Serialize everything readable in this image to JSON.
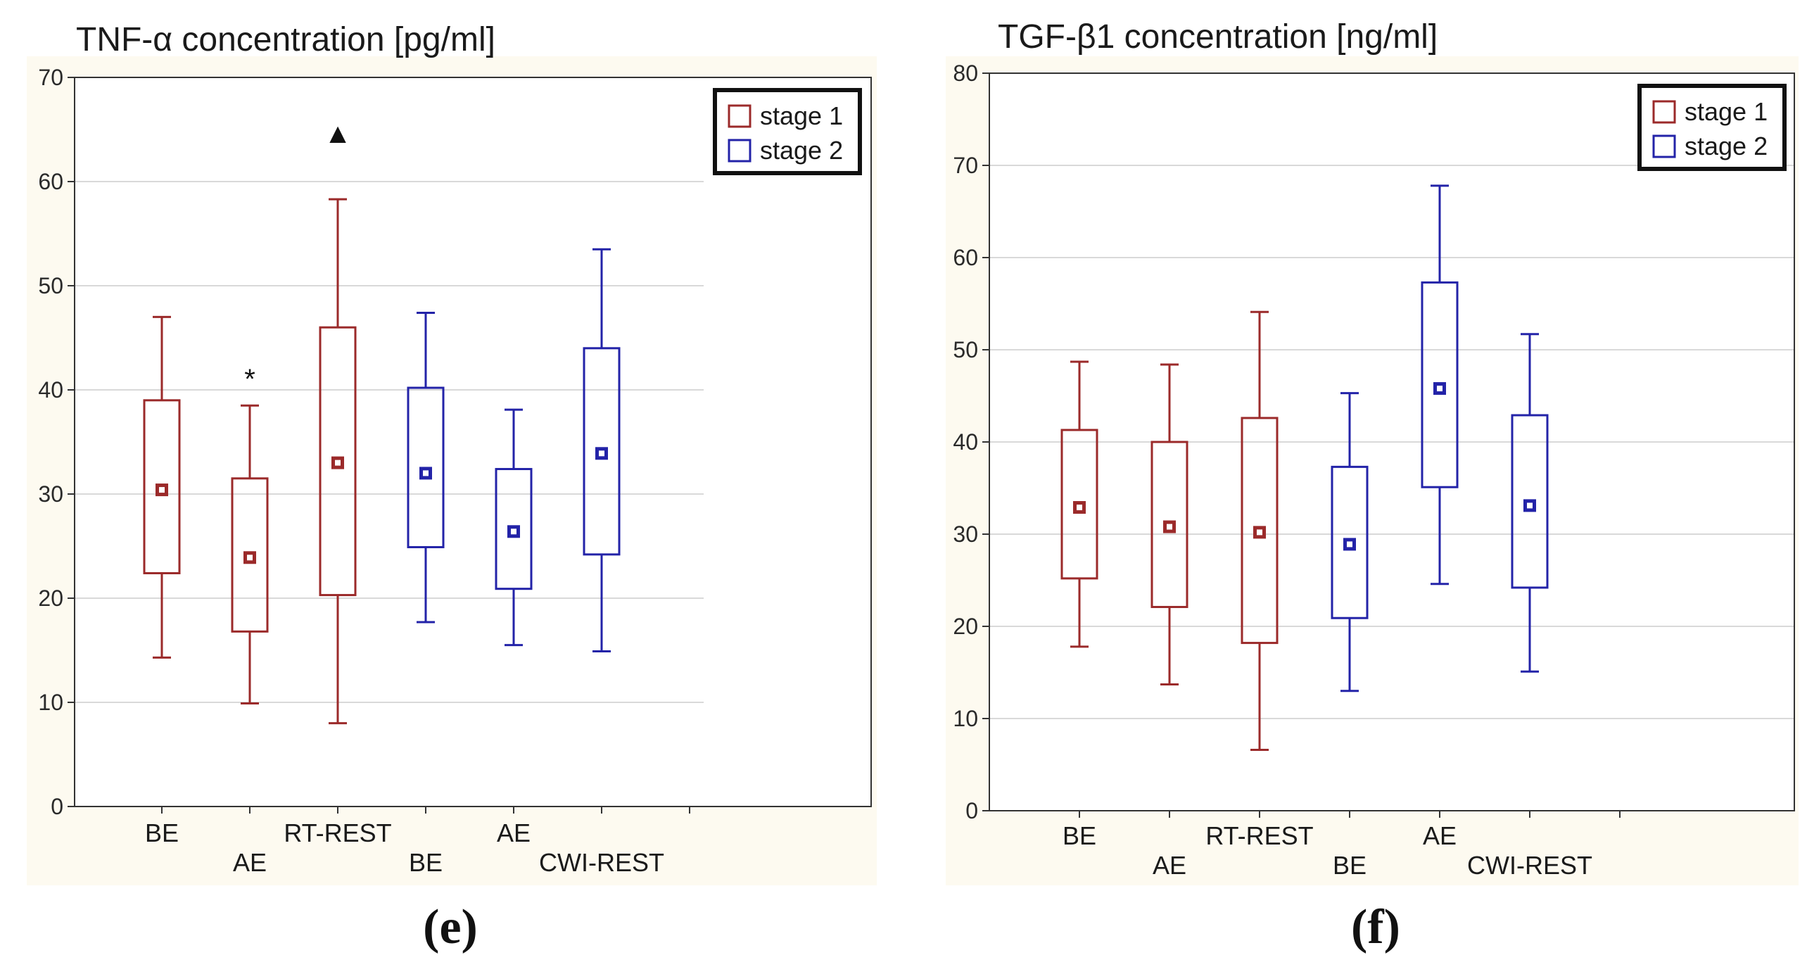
{
  "chart_data": [
    {
      "type": "box",
      "title": "TNF-α concentration [pg/ml]",
      "panel_label": "(e)",
      "ylim": [
        0,
        70
      ],
      "yticks": [
        0,
        10,
        20,
        30,
        40,
        50,
        60,
        70
      ],
      "legend": {
        "position": "top-right",
        "entries": [
          "stage 1",
          "stage 2"
        ]
      },
      "groups": [
        {
          "label": "BE",
          "label_row": 0,
          "series": "stage 1",
          "whisker_low": 14.3,
          "q1": 22.4,
          "median": 30.4,
          "q3": 39.0,
          "whisker_high": 47.0
        },
        {
          "label": "AE",
          "label_row": 1,
          "series": "stage 1",
          "whisker_low": 9.9,
          "q1": 16.8,
          "median": 23.9,
          "q3": 31.5,
          "whisker_high": 38.5,
          "annotation": "*"
        },
        {
          "label": "RT-REST",
          "label_row": 0,
          "series": "stage 1",
          "whisker_low": 8.0,
          "q1": 20.3,
          "median": 33.0,
          "q3": 46.0,
          "whisker_high": 58.3,
          "annotation": "▲"
        },
        {
          "label": "BE",
          "label_row": 1,
          "series": "stage 2",
          "whisker_low": 17.7,
          "q1": 24.9,
          "median": 32.0,
          "q3": 40.2,
          "whisker_high": 47.4
        },
        {
          "label": "AE",
          "label_row": 0,
          "series": "stage 2",
          "whisker_low": 15.5,
          "q1": 20.9,
          "median": 26.4,
          "q3": 32.4,
          "whisker_high": 38.1
        },
        {
          "label": "CWI-REST",
          "label_row": 1,
          "series": "stage 2",
          "whisker_low": 14.9,
          "q1": 24.2,
          "median": 33.9,
          "q3": 44.0,
          "whisker_high": 53.5
        }
      ]
    },
    {
      "type": "box",
      "title": "TGF-β1 concentration [ng/ml]",
      "panel_label": "(f)",
      "ylim": [
        0,
        80
      ],
      "yticks": [
        0,
        10,
        20,
        30,
        40,
        50,
        60,
        70,
        80
      ],
      "legend": {
        "position": "top-right",
        "entries": [
          "stage 1",
          "stage 2"
        ]
      },
      "groups": [
        {
          "label": "BE",
          "label_row": 0,
          "series": "stage 1",
          "whisker_low": 17.8,
          "q1": 25.2,
          "median": 32.9,
          "q3": 41.3,
          "whisker_high": 48.7
        },
        {
          "label": "AE",
          "label_row": 1,
          "series": "stage 1",
          "whisker_low": 13.7,
          "q1": 22.1,
          "median": 30.8,
          "q3": 40.0,
          "whisker_high": 48.4
        },
        {
          "label": "RT-REST",
          "label_row": 0,
          "series": "stage 1",
          "whisker_low": 6.6,
          "q1": 18.2,
          "median": 30.2,
          "q3": 42.6,
          "whisker_high": 54.1
        },
        {
          "label": "BE",
          "label_row": 1,
          "series": "stage 2",
          "whisker_low": 13.0,
          "q1": 20.9,
          "median": 28.9,
          "q3": 37.3,
          "whisker_high": 45.3
        },
        {
          "label": "AE",
          "label_row": 0,
          "series": "stage 2",
          "whisker_low": 24.6,
          "q1": 35.1,
          "median": 45.8,
          "q3": 57.3,
          "whisker_high": 67.8
        },
        {
          "label": "CWI-REST",
          "label_row": 1,
          "series": "stage 2",
          "whisker_low": 15.1,
          "q1": 24.2,
          "median": 33.1,
          "q3": 42.9,
          "whisker_high": 51.7
        }
      ]
    }
  ],
  "colors": {
    "stage 1": "#9b2a2a",
    "stage 2": "#2323a8",
    "plot_background": "#fdfaf0",
    "grid": "#d9d9d9"
  }
}
